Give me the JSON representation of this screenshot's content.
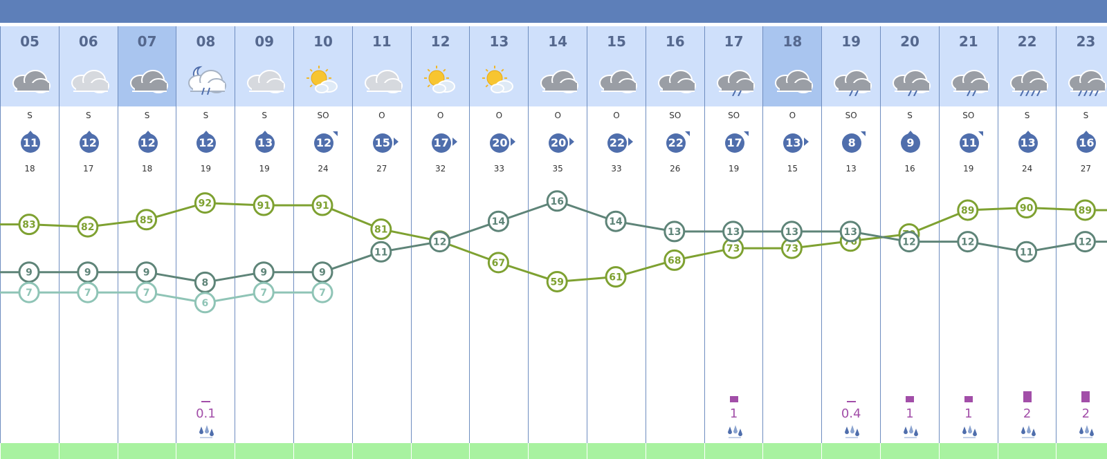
{
  "columns": [
    {
      "hour": "05",
      "weather_icon": "cloudy-icon",
      "wind_dir": "S",
      "wind_speed": "11",
      "wind_arrow": "arrow-up",
      "gust": "18",
      "rain": "",
      "rain_level": 0,
      "head": "light"
    },
    {
      "hour": "06",
      "weather_icon": "cloudy-light-icon",
      "wind_dir": "S",
      "wind_speed": "12",
      "wind_arrow": "arrow-up",
      "gust": "17",
      "rain": "",
      "rain_level": 0,
      "head": "light"
    },
    {
      "hour": "07",
      "weather_icon": "cloudy-icon",
      "wind_dir": "S",
      "wind_speed": "12",
      "wind_arrow": "arrow-up",
      "gust": "18",
      "rain": "",
      "rain_level": 0,
      "head": "dark"
    },
    {
      "hour": "08",
      "weather_icon": "night-rain-icon",
      "wind_dir": "S",
      "wind_speed": "12",
      "wind_arrow": "arrow-up",
      "gust": "19",
      "rain": "0.1",
      "rain_level": 0.1,
      "head": "light"
    },
    {
      "hour": "09",
      "weather_icon": "cloudy-light-icon",
      "wind_dir": "S",
      "wind_speed": "13",
      "wind_arrow": "arrow-up",
      "gust": "19",
      "rain": "",
      "rain_level": 0,
      "head": "light"
    },
    {
      "hour": "10",
      "weather_icon": "sun-cloud-icon",
      "wind_dir": "SO",
      "wind_speed": "12",
      "wind_arrow": "arrow-ne",
      "gust": "24",
      "rain": "",
      "rain_level": 0,
      "head": "light"
    },
    {
      "hour": "11",
      "weather_icon": "cloudy-light-icon",
      "wind_dir": "O",
      "wind_speed": "15",
      "wind_arrow": "arrow-right",
      "gust": "27",
      "rain": "",
      "rain_level": 0,
      "head": "light"
    },
    {
      "hour": "12",
      "weather_icon": "sun-cloud-icon",
      "wind_dir": "O",
      "wind_speed": "17",
      "wind_arrow": "arrow-right",
      "gust": "32",
      "rain": "",
      "rain_level": 0,
      "head": "light"
    },
    {
      "hour": "13",
      "weather_icon": "sun-cloud-icon",
      "wind_dir": "O",
      "wind_speed": "20",
      "wind_arrow": "arrow-right",
      "gust": "33",
      "rain": "",
      "rain_level": 0,
      "head": "light"
    },
    {
      "hour": "14",
      "weather_icon": "cloudy-icon",
      "wind_dir": "O",
      "wind_speed": "20",
      "wind_arrow": "arrow-right",
      "gust": "35",
      "rain": "",
      "rain_level": 0,
      "head": "light"
    },
    {
      "hour": "15",
      "weather_icon": "cloudy-icon",
      "wind_dir": "O",
      "wind_speed": "22",
      "wind_arrow": "arrow-right",
      "gust": "33",
      "rain": "",
      "rain_level": 0,
      "head": "light"
    },
    {
      "hour": "16",
      "weather_icon": "cloudy-icon",
      "wind_dir": "SO",
      "wind_speed": "22",
      "wind_arrow": "arrow-ne",
      "gust": "26",
      "rain": "",
      "rain_level": 0,
      "head": "light"
    },
    {
      "hour": "17",
      "weather_icon": "rain-cloud-icon",
      "wind_dir": "SO",
      "wind_speed": "17",
      "wind_arrow": "arrow-ne",
      "gust": "19",
      "rain": "1",
      "rain_level": 1,
      "head": "light"
    },
    {
      "hour": "18",
      "weather_icon": "cloudy-icon",
      "wind_dir": "O",
      "wind_speed": "13",
      "wind_arrow": "arrow-right",
      "gust": "15",
      "rain": "",
      "rain_level": 0,
      "head": "dark"
    },
    {
      "hour": "19",
      "weather_icon": "rain-cloud-icon",
      "wind_dir": "SO",
      "wind_speed": "8",
      "wind_arrow": "arrow-ne",
      "gust": "13",
      "rain": "0.4",
      "rain_level": 0.4,
      "head": "light"
    },
    {
      "hour": "20",
      "weather_icon": "rain-cloud-icon",
      "wind_dir": "S",
      "wind_speed": "9",
      "wind_arrow": "arrow-up",
      "gust": "16",
      "rain": "1",
      "rain_level": 1,
      "head": "light"
    },
    {
      "hour": "21",
      "weather_icon": "rain-cloud-icon",
      "wind_dir": "SO",
      "wind_speed": "11",
      "wind_arrow": "arrow-ne",
      "gust": "19",
      "rain": "1",
      "rain_level": 1,
      "head": "light"
    },
    {
      "hour": "22",
      "weather_icon": "heavy-rain-cloud-icon",
      "wind_dir": "S",
      "wind_speed": "13",
      "wind_arrow": "arrow-up",
      "gust": "24",
      "rain": "2",
      "rain_level": 2,
      "head": "light"
    },
    {
      "hour": "23",
      "weather_icon": "heavy-rain-cloud-icon",
      "wind_dir": "S",
      "wind_speed": "16",
      "wind_arrow": "arrow-up",
      "gust": "27",
      "rain": "2",
      "rain_level": 2,
      "head": "light"
    }
  ],
  "chart_data": {
    "type": "line",
    "categories": [
      "05",
      "06",
      "07",
      "08",
      "09",
      "10",
      "11",
      "12",
      "13",
      "14",
      "15",
      "16",
      "17",
      "18",
      "19",
      "20",
      "21",
      "22",
      "23"
    ],
    "series": [
      {
        "color": "#7ea131",
        "values": [
          83,
          82,
          85,
          92,
          91,
          91,
          81,
          76,
          67,
          59,
          61,
          68,
          73,
          73,
          76,
          79,
          89,
          90,
          89
        ]
      },
      {
        "color": "#5e8478",
        "values": [
          9,
          9,
          9,
          8,
          9,
          9,
          11,
          12,
          14,
          16,
          14,
          13,
          13,
          13,
          13,
          12,
          12,
          11,
          12
        ]
      },
      {
        "color": "#8fc4b6",
        "values": [
          7,
          7,
          7,
          6,
          7,
          7,
          null,
          null,
          null,
          null,
          null,
          null,
          null,
          null,
          null,
          null,
          null,
          null,
          null
        ]
      }
    ]
  },
  "colors": {
    "header": "#5d7fb9",
    "wind_badge": "#4f6eac",
    "rain": "#a24ea8",
    "footer": "#a8f2a0"
  }
}
